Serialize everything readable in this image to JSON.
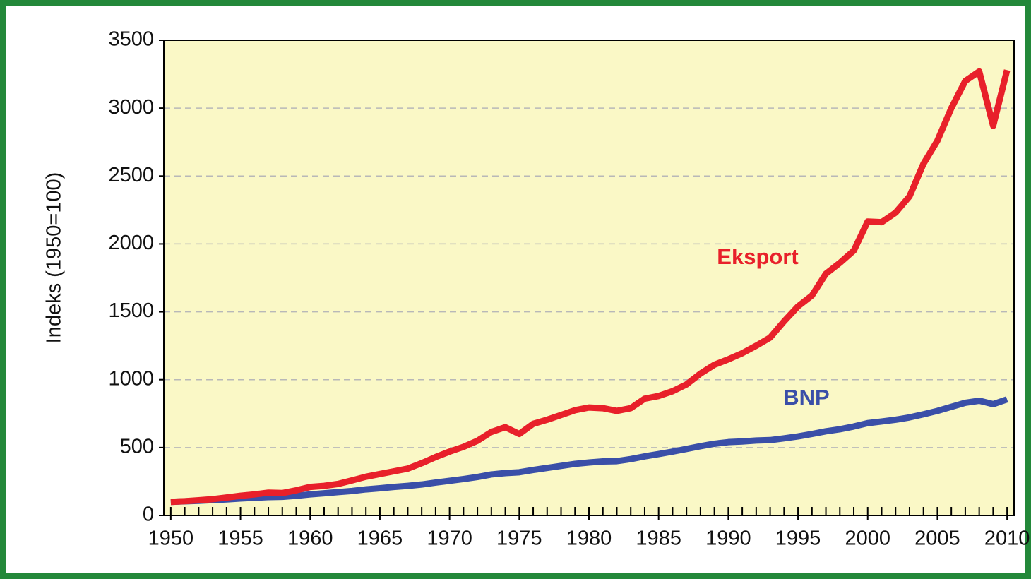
{
  "chart_data": {
    "type": "line",
    "y_label": "Indeks (1950=100)",
    "x": [
      1950,
      1951,
      1952,
      1953,
      1954,
      1955,
      1956,
      1957,
      1958,
      1959,
      1960,
      1961,
      1962,
      1963,
      1964,
      1965,
      1966,
      1967,
      1968,
      1969,
      1970,
      1971,
      1972,
      1973,
      1974,
      1975,
      1976,
      1977,
      1978,
      1979,
      1980,
      1981,
      1982,
      1983,
      1984,
      1985,
      1986,
      1987,
      1988,
      1989,
      1990,
      1991,
      1992,
      1993,
      1994,
      1995,
      1996,
      1997,
      1998,
      1999,
      2000,
      2001,
      2002,
      2003,
      2004,
      2005,
      2006,
      2007,
      2008,
      2009,
      2010
    ],
    "series": [
      {
        "name": "Eksport",
        "color": "#e8202a",
        "values": [
          100,
          105,
          112,
          120,
          132,
          145,
          155,
          168,
          165,
          185,
          210,
          218,
          232,
          258,
          285,
          305,
          325,
          345,
          385,
          430,
          470,
          505,
          550,
          615,
          650,
          600,
          675,
          705,
          740,
          775,
          795,
          790,
          770,
          790,
          860,
          880,
          915,
          965,
          1045,
          1110,
          1150,
          1195,
          1250,
          1310,
          1430,
          1540,
          1620,
          1780,
          1860,
          1950,
          2165,
          2160,
          2230,
          2350,
          2590,
          2760,
          3000,
          3200,
          3270,
          2870,
          3280
        ]
      },
      {
        "name": "BNP",
        "color": "#3a4fa8",
        "values": [
          100,
          104,
          108,
          113,
          118,
          125,
          130,
          135,
          137,
          145,
          155,
          163,
          172,
          180,
          192,
          200,
          210,
          218,
          228,
          242,
          255,
          268,
          283,
          302,
          312,
          318,
          335,
          350,
          365,
          380,
          390,
          398,
          400,
          415,
          435,
          452,
          470,
          490,
          510,
          528,
          540,
          545,
          552,
          555,
          568,
          582,
          600,
          620,
          635,
          655,
          680,
          692,
          705,
          722,
          745,
          770,
          800,
          830,
          845,
          820,
          855
        ]
      }
    ],
    "xlim": [
      1949.5,
      2010.5
    ],
    "xticks": [
      1950,
      1955,
      1960,
      1965,
      1970,
      1975,
      1980,
      1985,
      1990,
      1995,
      2000,
      2005,
      2010
    ],
    "ylim": [
      0,
      3500
    ],
    "yticks": [
      0,
      500,
      1000,
      1500,
      2000,
      2500,
      3000,
      3500
    ],
    "grid": true,
    "plot_background": "#faf8c6"
  }
}
